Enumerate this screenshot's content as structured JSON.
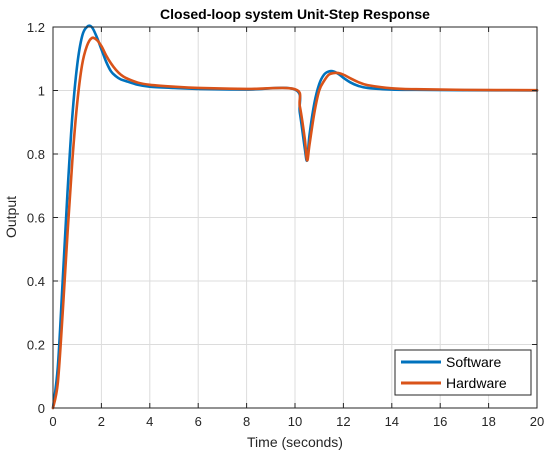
{
  "chart_data": {
    "type": "line",
    "title": "Closed-loop system Unit-Step Response",
    "xlabel": "Time (seconds)",
    "ylabel": "Output",
    "xlim": [
      0,
      20
    ],
    "ylim": [
      0,
      1.2
    ],
    "xticks": [
      0,
      2,
      4,
      6,
      8,
      10,
      12,
      14,
      16,
      18,
      20
    ],
    "yticks": [
      0,
      0.2,
      0.4,
      0.6,
      0.8,
      1,
      1.2
    ],
    "xtick_labels": [
      "0",
      "2",
      "4",
      "6",
      "8",
      "10",
      "12",
      "14",
      "16",
      "18",
      "20"
    ],
    "ytick_labels": [
      "0",
      "0.2",
      "0.4",
      "0.6",
      "0.8",
      "1",
      "1.2"
    ],
    "grid": true,
    "legend_position": "bottom-right",
    "series": [
      {
        "name": "Software",
        "color": "#0072BD",
        "x": [
          0,
          0.2,
          0.4,
          0.6,
          0.8,
          1.0,
          1.2,
          1.4,
          1.6,
          1.8,
          2.0,
          2.2,
          2.4,
          2.6,
          2.8,
          3.0,
          3.5,
          4.0,
          5.0,
          6.0,
          8.0,
          10.0,
          10.2,
          10.4,
          10.5,
          10.6,
          10.8,
          11.0,
          11.2,
          11.4,
          11.6,
          11.8,
          12.0,
          12.3,
          12.6,
          13.0,
          14.0,
          15.0,
          17.0,
          20.0
        ],
        "y": [
          0,
          0.13,
          0.4,
          0.68,
          0.92,
          1.08,
          1.17,
          1.2,
          1.2,
          1.17,
          1.13,
          1.09,
          1.06,
          1.045,
          1.035,
          1.03,
          1.018,
          1.012,
          1.008,
          1.005,
          1.003,
          1.003,
          0.93,
          0.82,
          0.78,
          0.86,
          0.96,
          1.02,
          1.05,
          1.06,
          1.06,
          1.052,
          1.04,
          1.025,
          1.015,
          1.008,
          1.003,
          1.002,
          1.001,
          1.0
        ]
      },
      {
        "name": "Hardware",
        "color": "#D95319",
        "x": [
          0,
          0.2,
          0.4,
          0.6,
          0.8,
          1.0,
          1.2,
          1.4,
          1.6,
          1.8,
          2.0,
          2.2,
          2.4,
          2.6,
          2.8,
          3.0,
          3.5,
          4.0,
          5.0,
          6.0,
          8.0,
          10.0,
          10.2,
          10.4,
          10.5,
          10.6,
          10.8,
          11.0,
          11.2,
          11.4,
          11.6,
          11.8,
          12.0,
          12.3,
          12.6,
          13.0,
          14.0,
          15.0,
          17.0,
          20.0
        ],
        "y": [
          0,
          0.08,
          0.3,
          0.55,
          0.78,
          0.96,
          1.08,
          1.14,
          1.165,
          1.16,
          1.14,
          1.11,
          1.085,
          1.065,
          1.05,
          1.04,
          1.025,
          1.018,
          1.012,
          1.008,
          1.005,
          1.004,
          0.95,
          0.85,
          0.78,
          0.83,
          0.93,
          1.0,
          1.03,
          1.05,
          1.055,
          1.055,
          1.05,
          1.038,
          1.027,
          1.017,
          1.007,
          1.004,
          1.002,
          1.001
        ]
      }
    ]
  }
}
